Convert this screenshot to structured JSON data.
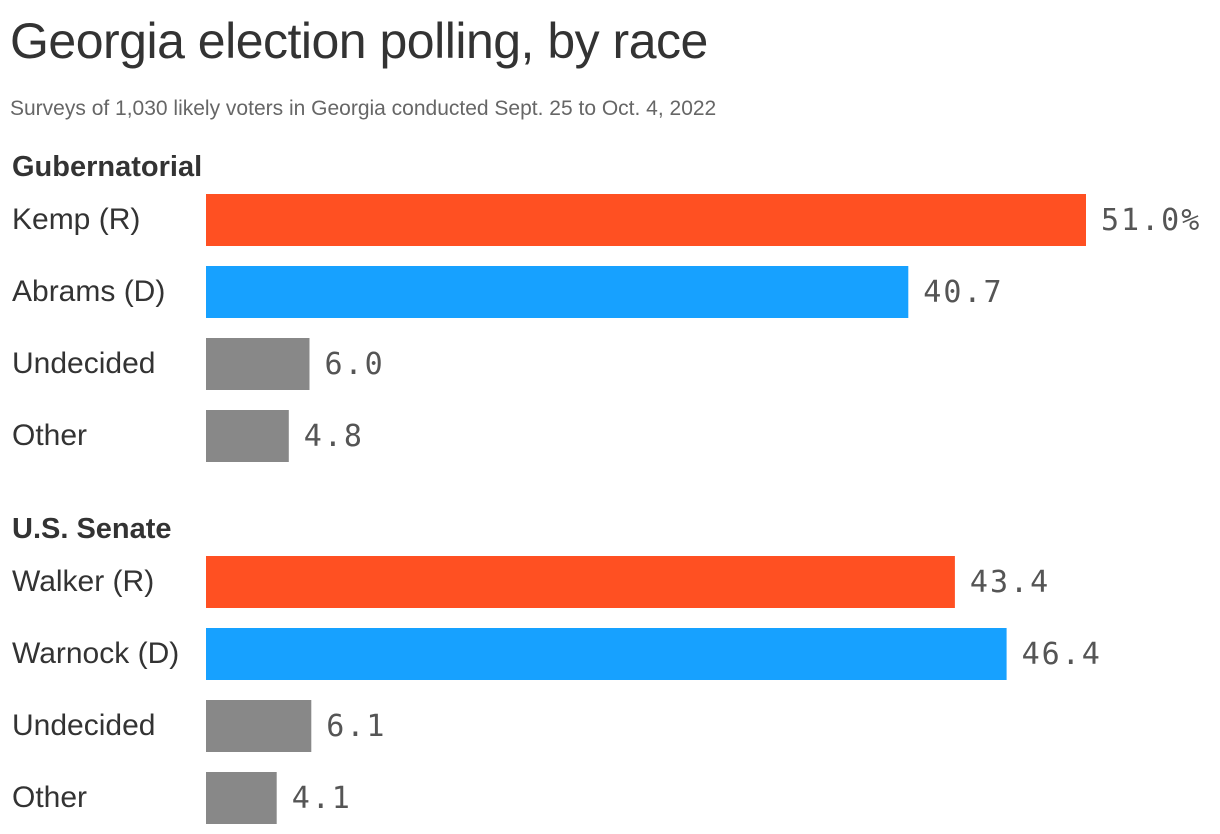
{
  "chart_data": {
    "type": "bar",
    "orientation": "horizontal",
    "title": "Georgia election polling, by race",
    "subtitle": "Surveys of 1,030 likely voters in Georgia conducted Sept. 25 to Oct. 4, 2022",
    "value_suffix_first": "%",
    "xlim": [
      0,
      51
    ],
    "grid": false,
    "colors": {
      "republican": "#FF5022",
      "democrat": "#17A1FF",
      "other": "#888888"
    },
    "groups": [
      {
        "title": "Gubernatorial",
        "items": [
          {
            "label": "Kemp (R)",
            "value": 51.0,
            "display": "51.0%",
            "party": "republican"
          },
          {
            "label": "Abrams (D)",
            "value": 40.7,
            "display": "40.7",
            "party": "democrat"
          },
          {
            "label": "Undecided",
            "value": 6.0,
            "display": "6.0",
            "party": "other"
          },
          {
            "label": "Other",
            "value": 4.8,
            "display": "4.8",
            "party": "other"
          }
        ]
      },
      {
        "title": "U.S. Senate",
        "items": [
          {
            "label": "Walker (R)",
            "value": 43.4,
            "display": "43.4",
            "party": "republican"
          },
          {
            "label": "Warnock (D)",
            "value": 46.4,
            "display": "46.4",
            "party": "democrat"
          },
          {
            "label": "Undecided",
            "value": 6.1,
            "display": "6.1",
            "party": "other"
          },
          {
            "label": "Other",
            "value": 4.1,
            "display": "4.1",
            "party": "other"
          }
        ]
      }
    ]
  }
}
